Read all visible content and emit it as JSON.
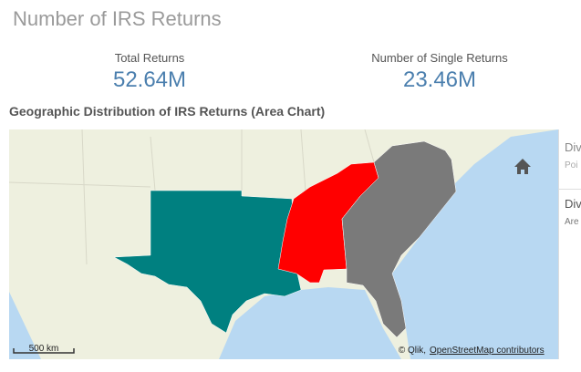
{
  "header": {
    "title": "Number of IRS Returns"
  },
  "kpis": [
    {
      "label": "Total Returns",
      "value": "52.64M"
    },
    {
      "label": "Number of Single Returns",
      "value": "23.46M"
    }
  ],
  "map": {
    "title": "Geographic Distribution of IRS Returns (Area Chart)",
    "scale": "500 km",
    "attribution": {
      "prefix": "© Qlik,",
      "link": "OpenStreetMap contributors"
    }
  },
  "legend": [
    {
      "title": "Div",
      "subtitle": "Poi"
    },
    {
      "title": "Div",
      "subtitle": "Are"
    }
  ]
}
